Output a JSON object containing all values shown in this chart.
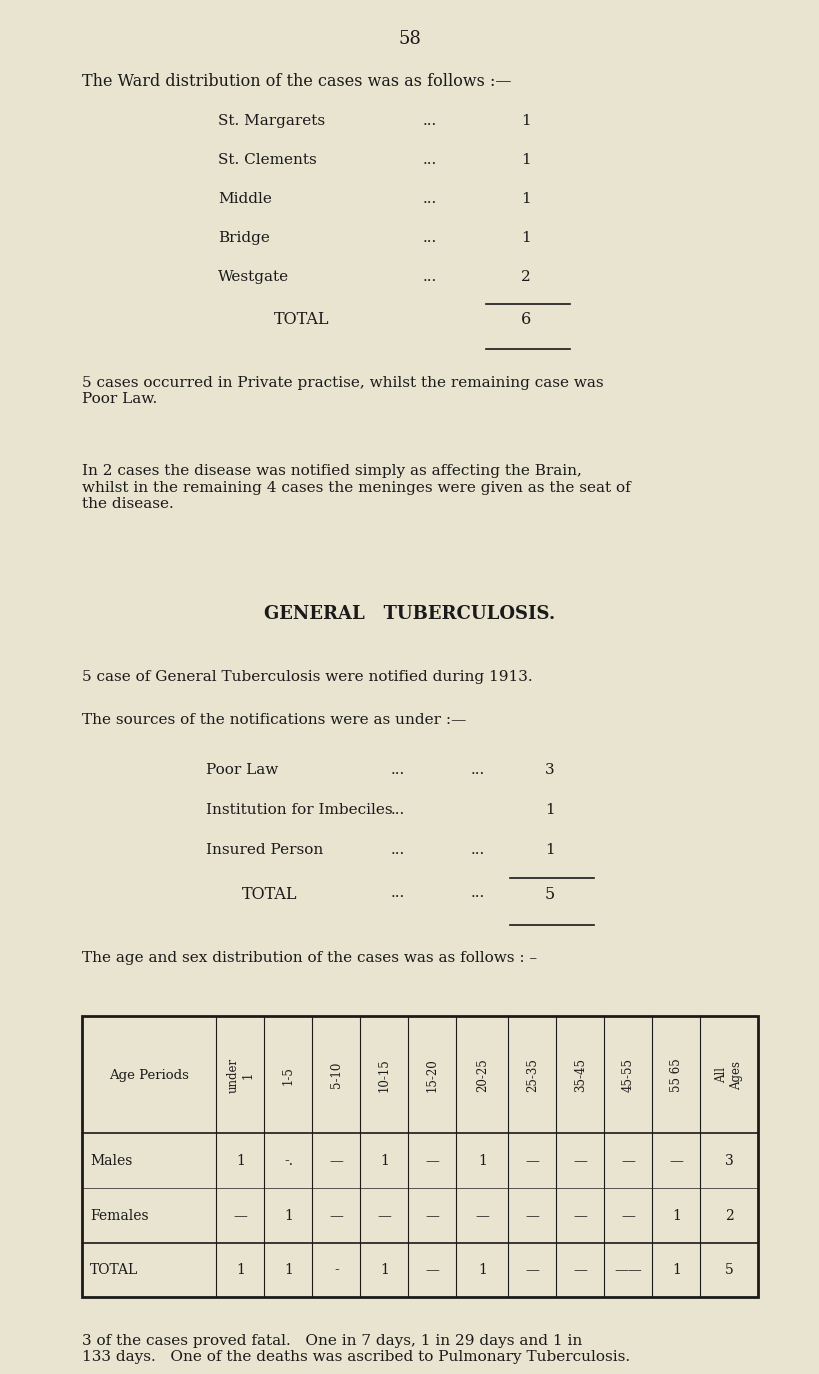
{
  "bg_color": "#e8e4d0",
  "text_color": "#1a1a1a",
  "page_number": "58",
  "section1_title": "The Ward distribution of the cases was as follows :—",
  "ward_rows": [
    [
      "St. Margarets",
      "...",
      "1"
    ],
    [
      "St. Clements",
      "...",
      "1"
    ],
    [
      "Middle",
      "...",
      "1"
    ],
    [
      "Bridge",
      "...",
      "1"
    ],
    [
      "Westgate",
      "...",
      "2"
    ]
  ],
  "ward_total_label": "TOTAL",
  "ward_total_value": "6",
  "para1": "5 cases occurred in Private practise, whilst the remaining case was\nPoor Law.",
  "para2": "In 2 cases the disease was notified simply as affecting the Brain,\nwhilst in the remaining 4 cases the meninges were given as the seat of\nthe disease.",
  "section2_title": "GENERAL   TUBERCULOSIS.",
  "para3": "5 case of General Tuberculosis were notified during 1913.",
  "para4": "The sources of the notifications were as under :—",
  "notif_total_label": "TOTAL",
  "notif_total_dots1": "...",
  "notif_total_dots2": "...",
  "notif_total_value": "5",
  "para5": "The age and sex distribution of the cases was as follows : –",
  "males_vals": [
    "1",
    "-.",
    "—",
    "1",
    "—",
    "1",
    "—",
    "—",
    "—",
    "—",
    "3"
  ],
  "females_vals": [
    "—",
    "1",
    "—",
    "—",
    "—",
    "—",
    "—",
    "—",
    "—",
    "1",
    "2"
  ],
  "total_vals": [
    "1",
    "1",
    "-",
    "1",
    "—",
    "1",
    "—",
    "—",
    "——",
    "1",
    "5"
  ],
  "age_headers": [
    "under\n1",
    "1-5",
    "5-10",
    "10-15",
    "15-20",
    "20-25",
    "25-35",
    "35-45",
    "45-55",
    "55 65",
    "All\nAges"
  ],
  "para6": "3 of the cases proved fatal.   One in 7 days, 1 in 29 days and 1 in\n133 days.   One of the deaths was ascribed to Pulmonary Tuberculosis."
}
